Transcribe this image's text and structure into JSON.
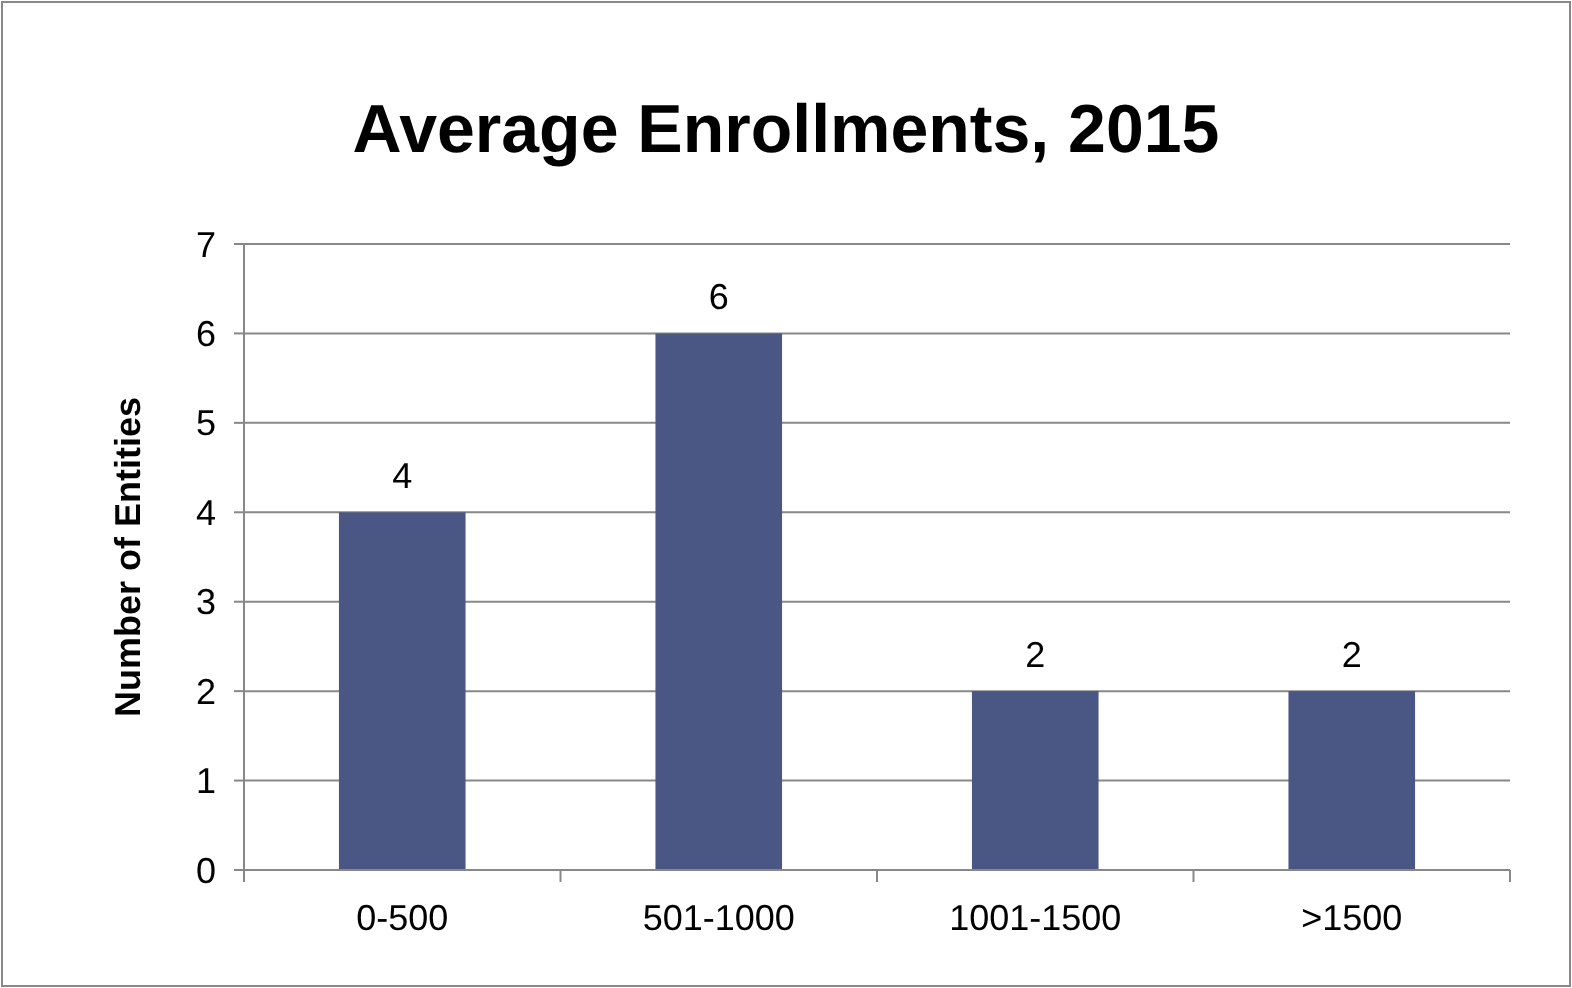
{
  "chart_data": {
    "type": "bar",
    "title": "Average Enrollments, 2015",
    "ylabel": "Number of Entities",
    "categories": [
      "0-500",
      "501-1000",
      "1001-1500",
      ">1500"
    ],
    "values": [
      4,
      6,
      2,
      2
    ],
    "color": "#4a5784",
    "ylim": [
      0,
      7
    ],
    "yticks": [
      0,
      1,
      2,
      3,
      4,
      5,
      6,
      7
    ],
    "grid": "y",
    "data_labels": true
  }
}
